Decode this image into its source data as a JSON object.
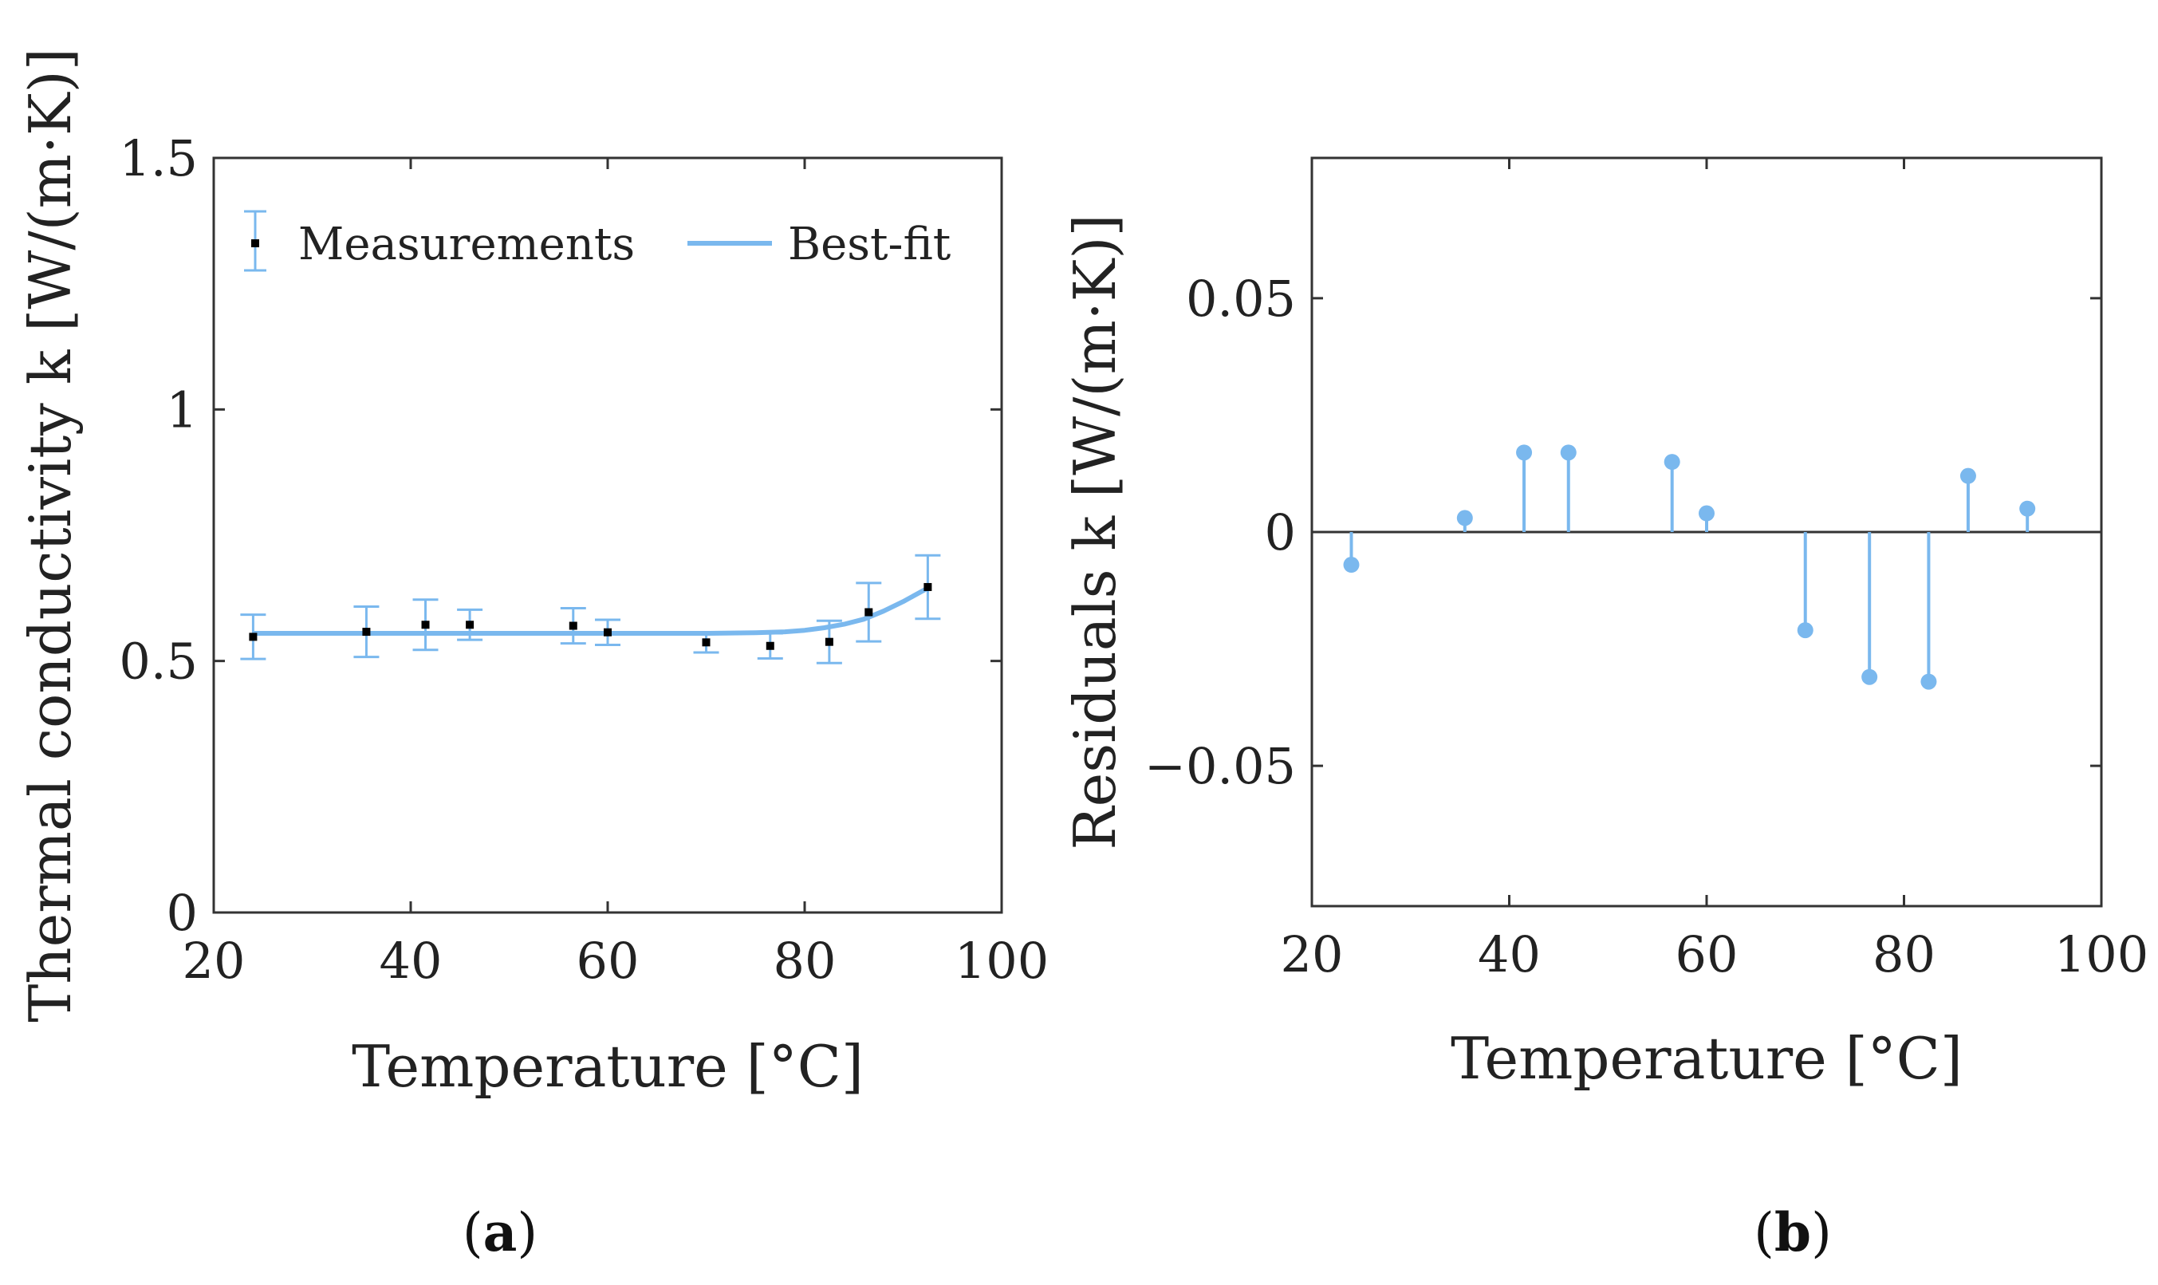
{
  "chart_data": [
    {
      "type": "scatter",
      "panel_label": "a",
      "xlabel": "Temperature [°C]",
      "ylabel": "Thermal conductivity k [W/(m·K)]",
      "xlim": [
        20,
        100
      ],
      "ylim": [
        0,
        1.5
      ],
      "xticks": [
        20,
        40,
        60,
        80,
        100
      ],
      "xtick_labels": [
        "20",
        "40",
        "60",
        "80",
        "100"
      ],
      "yticks": [
        0,
        0.5,
        1,
        1.5
      ],
      "ytick_labels": [
        "0",
        "0.5",
        "1",
        "1.5"
      ],
      "legend_position": "top-left",
      "series": [
        {
          "name": "Measurements",
          "color": "#7ab8ee",
          "x": [
            24,
            35.5,
            41.5,
            46,
            56.5,
            60,
            70,
            76.5,
            82.5,
            86.5,
            92.5
          ],
          "y": [
            0.548,
            0.558,
            0.572,
            0.572,
            0.57,
            0.557,
            0.537,
            0.53,
            0.538,
            0.597,
            0.647
          ],
          "err": [
            0.044,
            0.05,
            0.05,
            0.03,
            0.035,
            0.025,
            0.02,
            0.025,
            0.042,
            0.058,
            0.063
          ]
        },
        {
          "name": "Best-fit",
          "color": "#7ab8ee",
          "x": [
            24,
            30,
            40,
            50,
            60,
            70,
            75,
            78,
            80,
            82,
            84,
            86,
            88,
            90,
            92.5
          ],
          "y": [
            0.555,
            0.555,
            0.555,
            0.555,
            0.555,
            0.555,
            0.556,
            0.558,
            0.561,
            0.566,
            0.573,
            0.583,
            0.599,
            0.618,
            0.645
          ]
        }
      ]
    },
    {
      "type": "stem",
      "panel_label": "b",
      "xlabel": "Temperature [°C]",
      "ylabel": "Residuals k [W/(m·K)]",
      "xlim": [
        20,
        100
      ],
      "ylim": [
        -0.08,
        0.08
      ],
      "xticks": [
        20,
        40,
        60,
        80,
        100
      ],
      "xtick_labels": [
        "20",
        "40",
        "60",
        "80",
        "100"
      ],
      "yticks": [
        -0.05,
        0,
        0.05
      ],
      "ytick_labels": [
        "−0.05",
        "0",
        "0.05"
      ],
      "series": [
        {
          "name": "Residuals",
          "color": "#7ab8ee",
          "x": [
            24,
            35.5,
            41.5,
            46,
            56.5,
            60,
            70,
            76.5,
            82.5,
            86.5,
            92.5
          ],
          "y": [
            -0.007,
            0.003,
            0.017,
            0.017,
            0.015,
            0.004,
            -0.021,
            -0.031,
            -0.032,
            0.012,
            0.005
          ]
        }
      ]
    }
  ]
}
